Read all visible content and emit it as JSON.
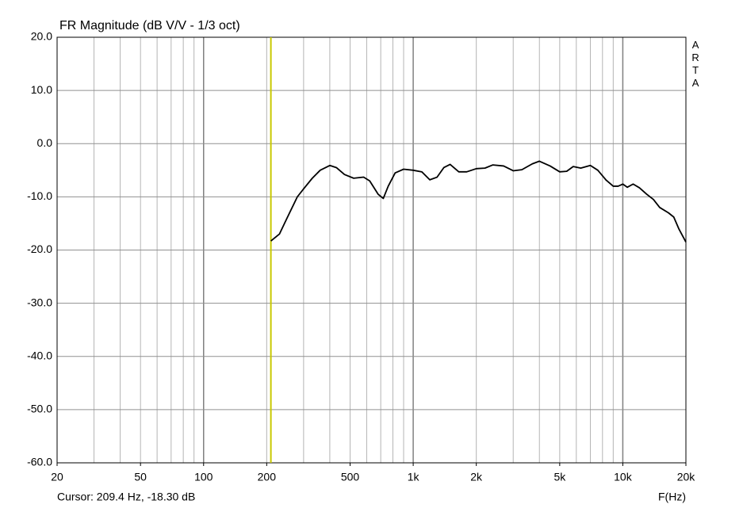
{
  "chart_data": {
    "type": "line",
    "title": "FR Magnitude (dB V/V - 1/3 oct)",
    "watermark": "ARTA",
    "x_label": "F(Hz)",
    "cursor": {
      "text": "Cursor: 209.4 Hz, -18.30 dB",
      "x": 209.4,
      "color": "#c8c800"
    },
    "log_x": true,
    "grid": true,
    "xlim": [
      20,
      20000
    ],
    "ylim": [
      -60,
      20
    ],
    "xticks": [
      20,
      50,
      100,
      200,
      500,
      {
        "value": 1000,
        "label": "1k"
      },
      {
        "value": 2000,
        "label": "2k"
      },
      {
        "value": 5000,
        "label": "5k"
      },
      {
        "value": 10000,
        "label": "10k"
      },
      {
        "value": 20000,
        "label": "20k"
      }
    ],
    "xgrid": [
      30,
      40,
      50,
      60,
      70,
      80,
      90,
      100,
      200,
      300,
      400,
      500,
      600,
      700,
      800,
      900,
      1000,
      2000,
      3000,
      4000,
      5000,
      6000,
      7000,
      8000,
      9000,
      10000
    ],
    "yticks": [
      {
        "value": 20,
        "label": "20.0"
      },
      {
        "value": 10,
        "label": "10.0"
      },
      {
        "value": 0,
        "label": "0.0"
      },
      {
        "value": -10,
        "label": "-10.0"
      },
      {
        "value": -20,
        "label": "-20.0"
      },
      {
        "value": -30,
        "label": "-30.0"
      },
      {
        "value": -40,
        "label": "-40.0"
      },
      {
        "value": -50,
        "label": "-50.0"
      },
      {
        "value": -60,
        "label": "-60.0"
      }
    ],
    "x": [
      209.4,
      230,
      250,
      280,
      300,
      330,
      360,
      400,
      430,
      470,
      520,
      580,
      620,
      680,
      720,
      760,
      820,
      900,
      1000,
      1100,
      1200,
      1300,
      1400,
      1500,
      1650,
      1800,
      2000,
      2200,
      2400,
      2700,
      3000,
      3300,
      3700,
      4000,
      4500,
      5000,
      5400,
      5800,
      6300,
      7000,
      7600,
      8300,
      9000,
      9500,
      10000,
      10500,
      11200,
      12000,
      13000,
      14000,
      15000,
      16500,
      17500,
      18500,
      20000
    ],
    "series": [
      {
        "color": "#000000",
        "values": [
          -18.3,
          -17,
          -14,
          -10,
          -8.5,
          -6.5,
          -5,
          -4.1,
          -4.5,
          -5.8,
          -6.5,
          -6.3,
          -7,
          -9.5,
          -10.3,
          -8,
          -5.5,
          -4.8,
          -5,
          -5.3,
          -6.8,
          -6.3,
          -4.5,
          -3.9,
          -5.3,
          -5.3,
          -4.7,
          -4.6,
          -4,
          -4.2,
          -5.1,
          -4.9,
          -3.8,
          -3.3,
          -4.2,
          -5.3,
          -5.2,
          -4.3,
          -4.6,
          -4.1,
          -5,
          -6.8,
          -8,
          -8,
          -7.6,
          -8.2,
          -7.6,
          -8.3,
          -9.5,
          -10.5,
          -12,
          -13,
          -13.8,
          -16,
          -18.5
        ]
      }
    ]
  }
}
